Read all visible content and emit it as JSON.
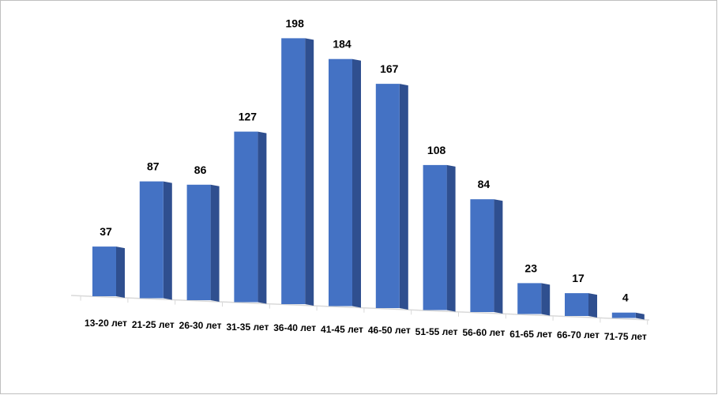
{
  "chart_data": {
    "type": "bar",
    "categories": [
      "13-20 лет",
      "21-25 лет",
      "26-30 лет",
      "31-35 лет",
      "36-40 лет",
      "41-45 лет",
      "46-50 лет",
      "51-55 лет",
      "56-60 лет",
      "61-65 лет",
      "66-70 лет",
      "71-75 лет"
    ],
    "values": [
      37,
      87,
      86,
      127,
      198,
      184,
      167,
      108,
      84,
      23,
      17,
      4
    ],
    "color": "#4472c4"
  }
}
